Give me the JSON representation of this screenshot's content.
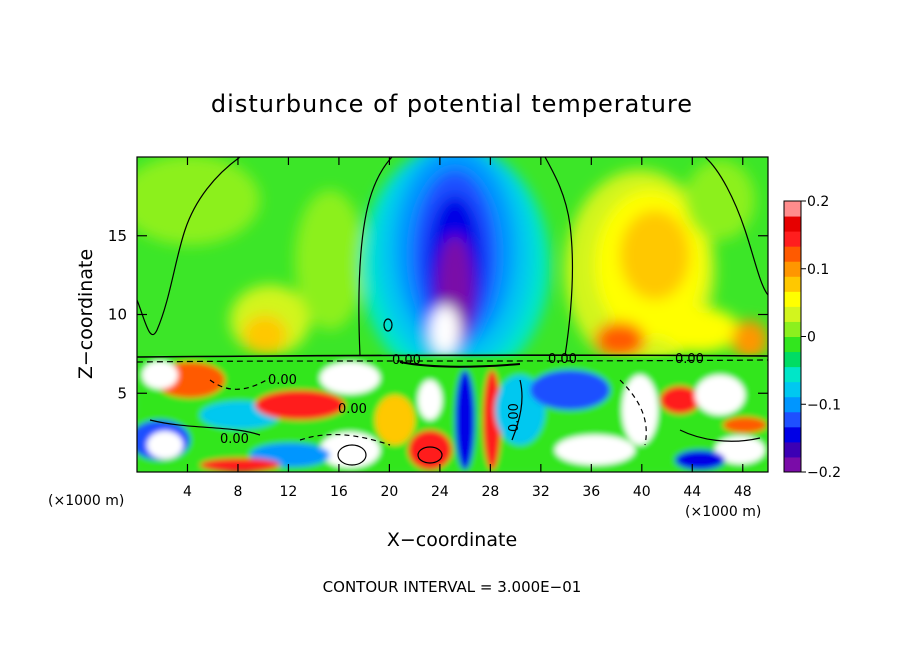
{
  "chart_data": {
    "type": "heatmap",
    "title": "disturbunce of potential temperature",
    "xlabel": "X−coordinate",
    "ylabel": "Z−coordinate",
    "x_unit_label": "(×1000 m)",
    "x_unit_label_right": "(×1000 m)",
    "xlim": [
      0,
      50
    ],
    "ylim": [
      0,
      20
    ],
    "x_ticks": [
      4,
      8,
      12,
      16,
      20,
      24,
      28,
      32,
      36,
      40,
      44,
      48
    ],
    "y_ticks": [
      5,
      10,
      15
    ],
    "colorbar": {
      "ticks": [
        0.2,
        0.1,
        0,
        -0.1,
        -0.2
      ],
      "tick_labels": [
        "0.2",
        "0.1",
        "0",
        "−0.1",
        "−0.2"
      ],
      "range": [
        -0.2,
        0.2
      ],
      "colors": [
        "#7a0ca8",
        "#3c00b4",
        "#0000e6",
        "#1e50ff",
        "#0096ff",
        "#00c8f0",
        "#00e6c8",
        "#00dc64",
        "#32e61e",
        "#8cf01e",
        "#d2f51e",
        "#ffff00",
        "#ffc800",
        "#ff9600",
        "#ff5a00",
        "#ff1e1e",
        "#e60000",
        "#ff8c8c"
      ]
    },
    "contour_labels": [
      "0.00",
      "0.00",
      "0.00",
      "0.00",
      "0.00",
      "0.00",
      "0.00"
    ],
    "footer": "CONTOUR INTERVAL = 3.000E−01",
    "grid": false
  }
}
